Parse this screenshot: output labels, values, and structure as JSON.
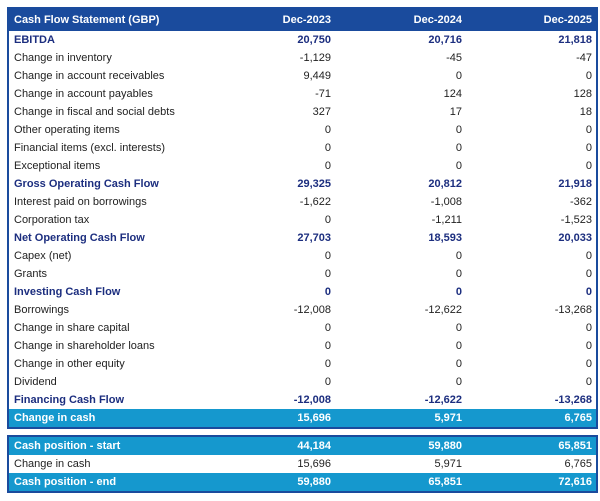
{
  "colors": {
    "navy": "#1a4b9d",
    "cyan": "#1598ce",
    "subtotal_text": "#1c2e7f",
    "body_text": "#222222"
  },
  "table": {
    "title": "Cash Flow Statement (GBP)",
    "columns": [
      "Dec-2023",
      "Dec-2024",
      "Dec-2025"
    ],
    "rows": [
      {
        "label": "EBITDA",
        "values": [
          "20,750",
          "20,716",
          "21,818"
        ],
        "style": "subtotal"
      },
      {
        "label": "Change in inventory",
        "values": [
          "-1,129",
          "-45",
          "-47"
        ],
        "style": "normal"
      },
      {
        "label": "Change in account receivables",
        "values": [
          "9,449",
          "0",
          "0"
        ],
        "style": "normal"
      },
      {
        "label": "Change in account payables",
        "values": [
          "-71",
          "124",
          "128"
        ],
        "style": "normal"
      },
      {
        "label": "Change in fiscal and social debts",
        "values": [
          "327",
          "17",
          "18"
        ],
        "style": "normal"
      },
      {
        "label": "Other operating items",
        "values": [
          "0",
          "0",
          "0"
        ],
        "style": "normal"
      },
      {
        "label": "Financial items (excl. interests)",
        "values": [
          "0",
          "0",
          "0"
        ],
        "style": "normal"
      },
      {
        "label": "Exceptional items",
        "values": [
          "0",
          "0",
          "0"
        ],
        "style": "normal"
      },
      {
        "label": "Gross Operating Cash Flow",
        "values": [
          "29,325",
          "20,812",
          "21,918"
        ],
        "style": "subtotal"
      },
      {
        "label": "Interest paid on borrowings",
        "values": [
          "-1,622",
          "-1,008",
          "-362"
        ],
        "style": "normal"
      },
      {
        "label": "Corporation tax",
        "values": [
          "0",
          "-1,211",
          "-1,523"
        ],
        "style": "normal"
      },
      {
        "label": "Net Operating Cash Flow",
        "values": [
          "27,703",
          "18,593",
          "20,033"
        ],
        "style": "subtotal"
      },
      {
        "label": "Capex (net)",
        "values": [
          "0",
          "0",
          "0"
        ],
        "style": "normal"
      },
      {
        "label": "Grants",
        "values": [
          "0",
          "0",
          "0"
        ],
        "style": "normal"
      },
      {
        "label": "Investing Cash Flow",
        "values": [
          "0",
          "0",
          "0"
        ],
        "style": "subtotal"
      },
      {
        "label": "Borrowings",
        "values": [
          "-12,008",
          "-12,622",
          "-13,268"
        ],
        "style": "normal"
      },
      {
        "label": "Change in share capital",
        "values": [
          "0",
          "0",
          "0"
        ],
        "style": "normal"
      },
      {
        "label": "Change in shareholder loans",
        "values": [
          "0",
          "0",
          "0"
        ],
        "style": "normal"
      },
      {
        "label": "Change in other equity",
        "values": [
          "0",
          "0",
          "0"
        ],
        "style": "normal"
      },
      {
        "label": "Dividend",
        "values": [
          "0",
          "0",
          "0"
        ],
        "style": "normal"
      },
      {
        "label": "Financing Cash Flow",
        "values": [
          "-12,008",
          "-12,622",
          "-13,268"
        ],
        "style": "subtotal"
      },
      {
        "label": "Change in cash",
        "values": [
          "15,696",
          "5,971",
          "6,765"
        ],
        "style": "highlight"
      }
    ],
    "summary_rows": [
      {
        "label": "Cash position - start",
        "values": [
          "44,184",
          "59,880",
          "65,851"
        ],
        "style": "highlight"
      },
      {
        "label": "Change in cash",
        "values": [
          "15,696",
          "5,971",
          "6,765"
        ],
        "style": "normal"
      },
      {
        "label": "Cash position - end",
        "values": [
          "59,880",
          "65,851",
          "72,616"
        ],
        "style": "highlight"
      }
    ]
  }
}
